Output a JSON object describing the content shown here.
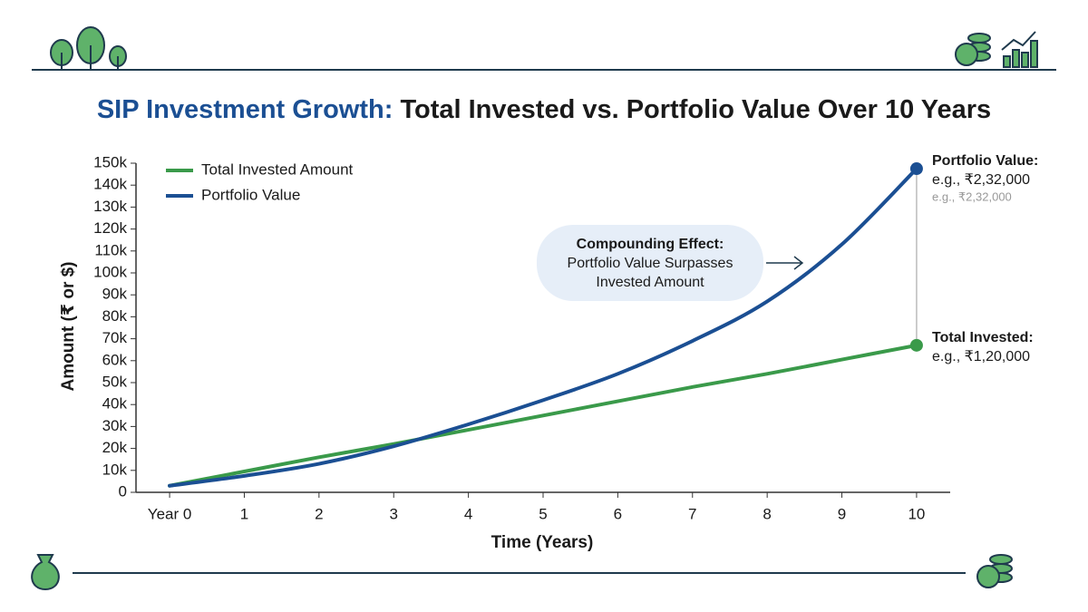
{
  "chart_data": {
    "type": "line",
    "title": [
      "SIP Investment Growth:",
      "Total Invested vs. Portfolio Value Over 10 Years"
    ],
    "x_label": "Time (Years)",
    "y_label": "Amount (₹ or $)",
    "x": [
      0,
      1,
      2,
      3,
      4,
      5,
      6,
      7,
      8,
      9,
      10
    ],
    "xlim": [
      -0.45,
      10.45
    ],
    "xticks": [
      {
        "value": 0,
        "label": "Year 0"
      },
      1,
      2,
      3,
      4,
      5,
      6,
      7,
      8,
      9,
      10
    ],
    "ylim": [
      0,
      150000
    ],
    "yticks": [
      0,
      {
        "value": 10000,
        "label": "10k"
      },
      {
        "value": 20000,
        "label": "20k"
      },
      {
        "value": 30000,
        "label": "30k"
      },
      {
        "value": 40000,
        "label": "40k"
      },
      {
        "value": 50000,
        "label": "50k"
      },
      {
        "value": 60000,
        "label": "60k"
      },
      {
        "value": 70000,
        "label": "70k"
      },
      {
        "value": 80000,
        "label": "80k"
      },
      {
        "value": 90000,
        "label": "90k"
      },
      {
        "value": 100000,
        "label": "100k"
      },
      {
        "value": 110000,
        "label": "110k"
      },
      {
        "value": 120000,
        "label": "120k"
      },
      {
        "value": 130000,
        "label": "130k"
      },
      {
        "value": 140000,
        "label": "140k"
      },
      {
        "value": 150000,
        "label": "150k"
      }
    ],
    "legend": "top-left",
    "series": [
      {
        "name": "Total Invested Amount",
        "color": "#3a9a4a",
        "values": [
          3000,
          9500,
          16000,
          22000,
          28500,
          35000,
          41500,
          48000,
          54000,
          60500,
          67000
        ]
      },
      {
        "name": "Portfolio Value",
        "color": "#1b4f93",
        "values": [
          3000,
          7500,
          13000,
          21000,
          31000,
          42000,
          54000,
          69000,
          87000,
          113000,
          147500
        ]
      }
    ],
    "annotations": {
      "portfolio": {
        "title": "Portfolio Value:",
        "text": "e.g., ₹2,32,000",
        "faint": "e.g., ₹2,32,000"
      },
      "invested": {
        "title": "Total Invested:",
        "text": "e.g., ₹1,20,000"
      },
      "callout": [
        "Compounding Effect:",
        "Portfolio Value Surpasses",
        "Invested Amount"
      ]
    }
  }
}
